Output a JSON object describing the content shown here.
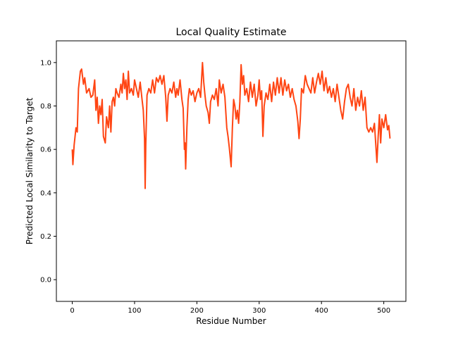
{
  "chart_data": {
    "type": "line",
    "title": "Local Quality Estimate",
    "x_label": "Residue Number",
    "y_label": "Predicted Local Similarity to Target",
    "xlim": [
      -25.5,
      535.5
    ],
    "ylim": [
      -0.1,
      1.1
    ],
    "xticks": [
      0,
      100,
      200,
      300,
      400,
      500
    ],
    "yticks": [
      {
        "value": 0,
        "label": "0.0"
      },
      0.2,
      0.4,
      0.6,
      0.8,
      {
        "value": 1,
        "label": "1.0"
      }
    ],
    "grid": false,
    "series": [
      {
        "color": "#ff4513",
        "x": [
          0,
          1,
          3,
          6,
          8,
          10,
          13,
          15,
          18,
          20,
          23,
          27,
          30,
          33,
          36,
          38,
          40,
          42,
          44,
          46,
          48,
          50,
          53,
          55,
          58,
          60,
          62,
          64,
          66,
          68,
          70,
          72,
          75,
          78,
          80,
          82,
          84,
          86,
          88,
          90,
          92,
          95,
          98,
          100,
          103,
          106,
          109,
          112,
          114,
          116,
          117,
          118,
          120,
          123,
          126,
          129,
          132,
          135,
          138,
          141,
          144,
          147,
          150,
          152,
          154,
          157,
          160,
          163,
          166,
          168,
          170,
          173,
          176,
          178,
          180,
          181,
          182,
          184,
          186,
          188,
          191,
          194,
          197,
          200,
          203,
          206,
          209,
          211,
          213,
          215,
          218,
          220,
          222,
          225,
          228,
          231,
          234,
          236,
          239,
          242,
          245,
          248,
          250,
          252,
          254,
          255,
          257,
          259,
          261,
          263,
          265,
          267,
          269,
          271,
          273,
          275,
          277,
          280,
          283,
          286,
          289,
          292,
          295,
          298,
          300,
          302,
          304,
          306,
          308,
          311,
          314,
          317,
          320,
          323,
          326,
          329,
          332,
          335,
          338,
          341,
          344,
          347,
          350,
          353,
          356,
          359,
          362,
          364,
          366,
          368,
          371,
          374,
          377,
          380,
          383,
          386,
          389,
          392,
          395,
          398,
          401,
          404,
          407,
          410,
          413,
          416,
          419,
          422,
          425,
          428,
          431,
          434,
          437,
          440,
          443,
          446,
          449,
          452,
          455,
          458,
          461,
          464,
          467,
          470,
          473,
          476,
          479,
          482,
          485,
          487,
          489,
          491,
          493,
          495,
          497,
          500,
          503,
          506,
          508,
          510
        ],
        "values": [
          0.6,
          0.53,
          0.62,
          0.7,
          0.68,
          0.88,
          0.96,
          0.97,
          0.9,
          0.93,
          0.86,
          0.88,
          0.84,
          0.85,
          0.92,
          0.78,
          0.84,
          0.72,
          0.8,
          0.76,
          0.83,
          0.66,
          0.63,
          0.75,
          0.7,
          0.8,
          0.68,
          0.82,
          0.84,
          0.8,
          0.88,
          0.86,
          0.84,
          0.9,
          0.86,
          0.95,
          0.88,
          0.92,
          0.83,
          0.96,
          0.86,
          0.88,
          0.85,
          0.92,
          0.88,
          0.84,
          0.91,
          0.83,
          0.78,
          0.65,
          0.42,
          0.62,
          0.85,
          0.88,
          0.86,
          0.92,
          0.86,
          0.93,
          0.91,
          0.94,
          0.9,
          0.94,
          0.84,
          0.73,
          0.85,
          0.88,
          0.86,
          0.91,
          0.84,
          0.88,
          0.85,
          0.92,
          0.83,
          0.79,
          0.6,
          0.63,
          0.51,
          0.7,
          0.83,
          0.88,
          0.85,
          0.87,
          0.82,
          0.86,
          0.88,
          0.84,
          1.0,
          0.91,
          0.85,
          0.8,
          0.77,
          0.72,
          0.82,
          0.85,
          0.83,
          0.88,
          0.8,
          0.92,
          0.86,
          0.9,
          0.84,
          0.7,
          0.66,
          0.61,
          0.55,
          0.52,
          0.7,
          0.83,
          0.8,
          0.74,
          0.78,
          0.72,
          0.82,
          0.99,
          0.9,
          0.94,
          0.85,
          0.88,
          0.82,
          0.91,
          0.84,
          0.9,
          0.8,
          0.85,
          0.92,
          0.83,
          0.87,
          0.66,
          0.8,
          0.86,
          0.83,
          0.9,
          0.82,
          0.91,
          0.85,
          0.93,
          0.86,
          0.93,
          0.85,
          0.92,
          0.87,
          0.9,
          0.84,
          0.88,
          0.83,
          0.8,
          0.73,
          0.65,
          0.74,
          0.88,
          0.86,
          0.94,
          0.9,
          0.88,
          0.86,
          0.93,
          0.86,
          0.91,
          0.95,
          0.9,
          0.96,
          0.87,
          0.93,
          0.86,
          0.89,
          0.84,
          0.88,
          0.82,
          0.9,
          0.84,
          0.78,
          0.74,
          0.82,
          0.88,
          0.9,
          0.84,
          0.8,
          0.88,
          0.78,
          0.84,
          0.8,
          0.87,
          0.78,
          0.84,
          0.7,
          0.68,
          0.7,
          0.68,
          0.72,
          0.63,
          0.54,
          0.66,
          0.76,
          0.63,
          0.74,
          0.7,
          0.76,
          0.69,
          0.71,
          0.65
        ]
      }
    ]
  }
}
